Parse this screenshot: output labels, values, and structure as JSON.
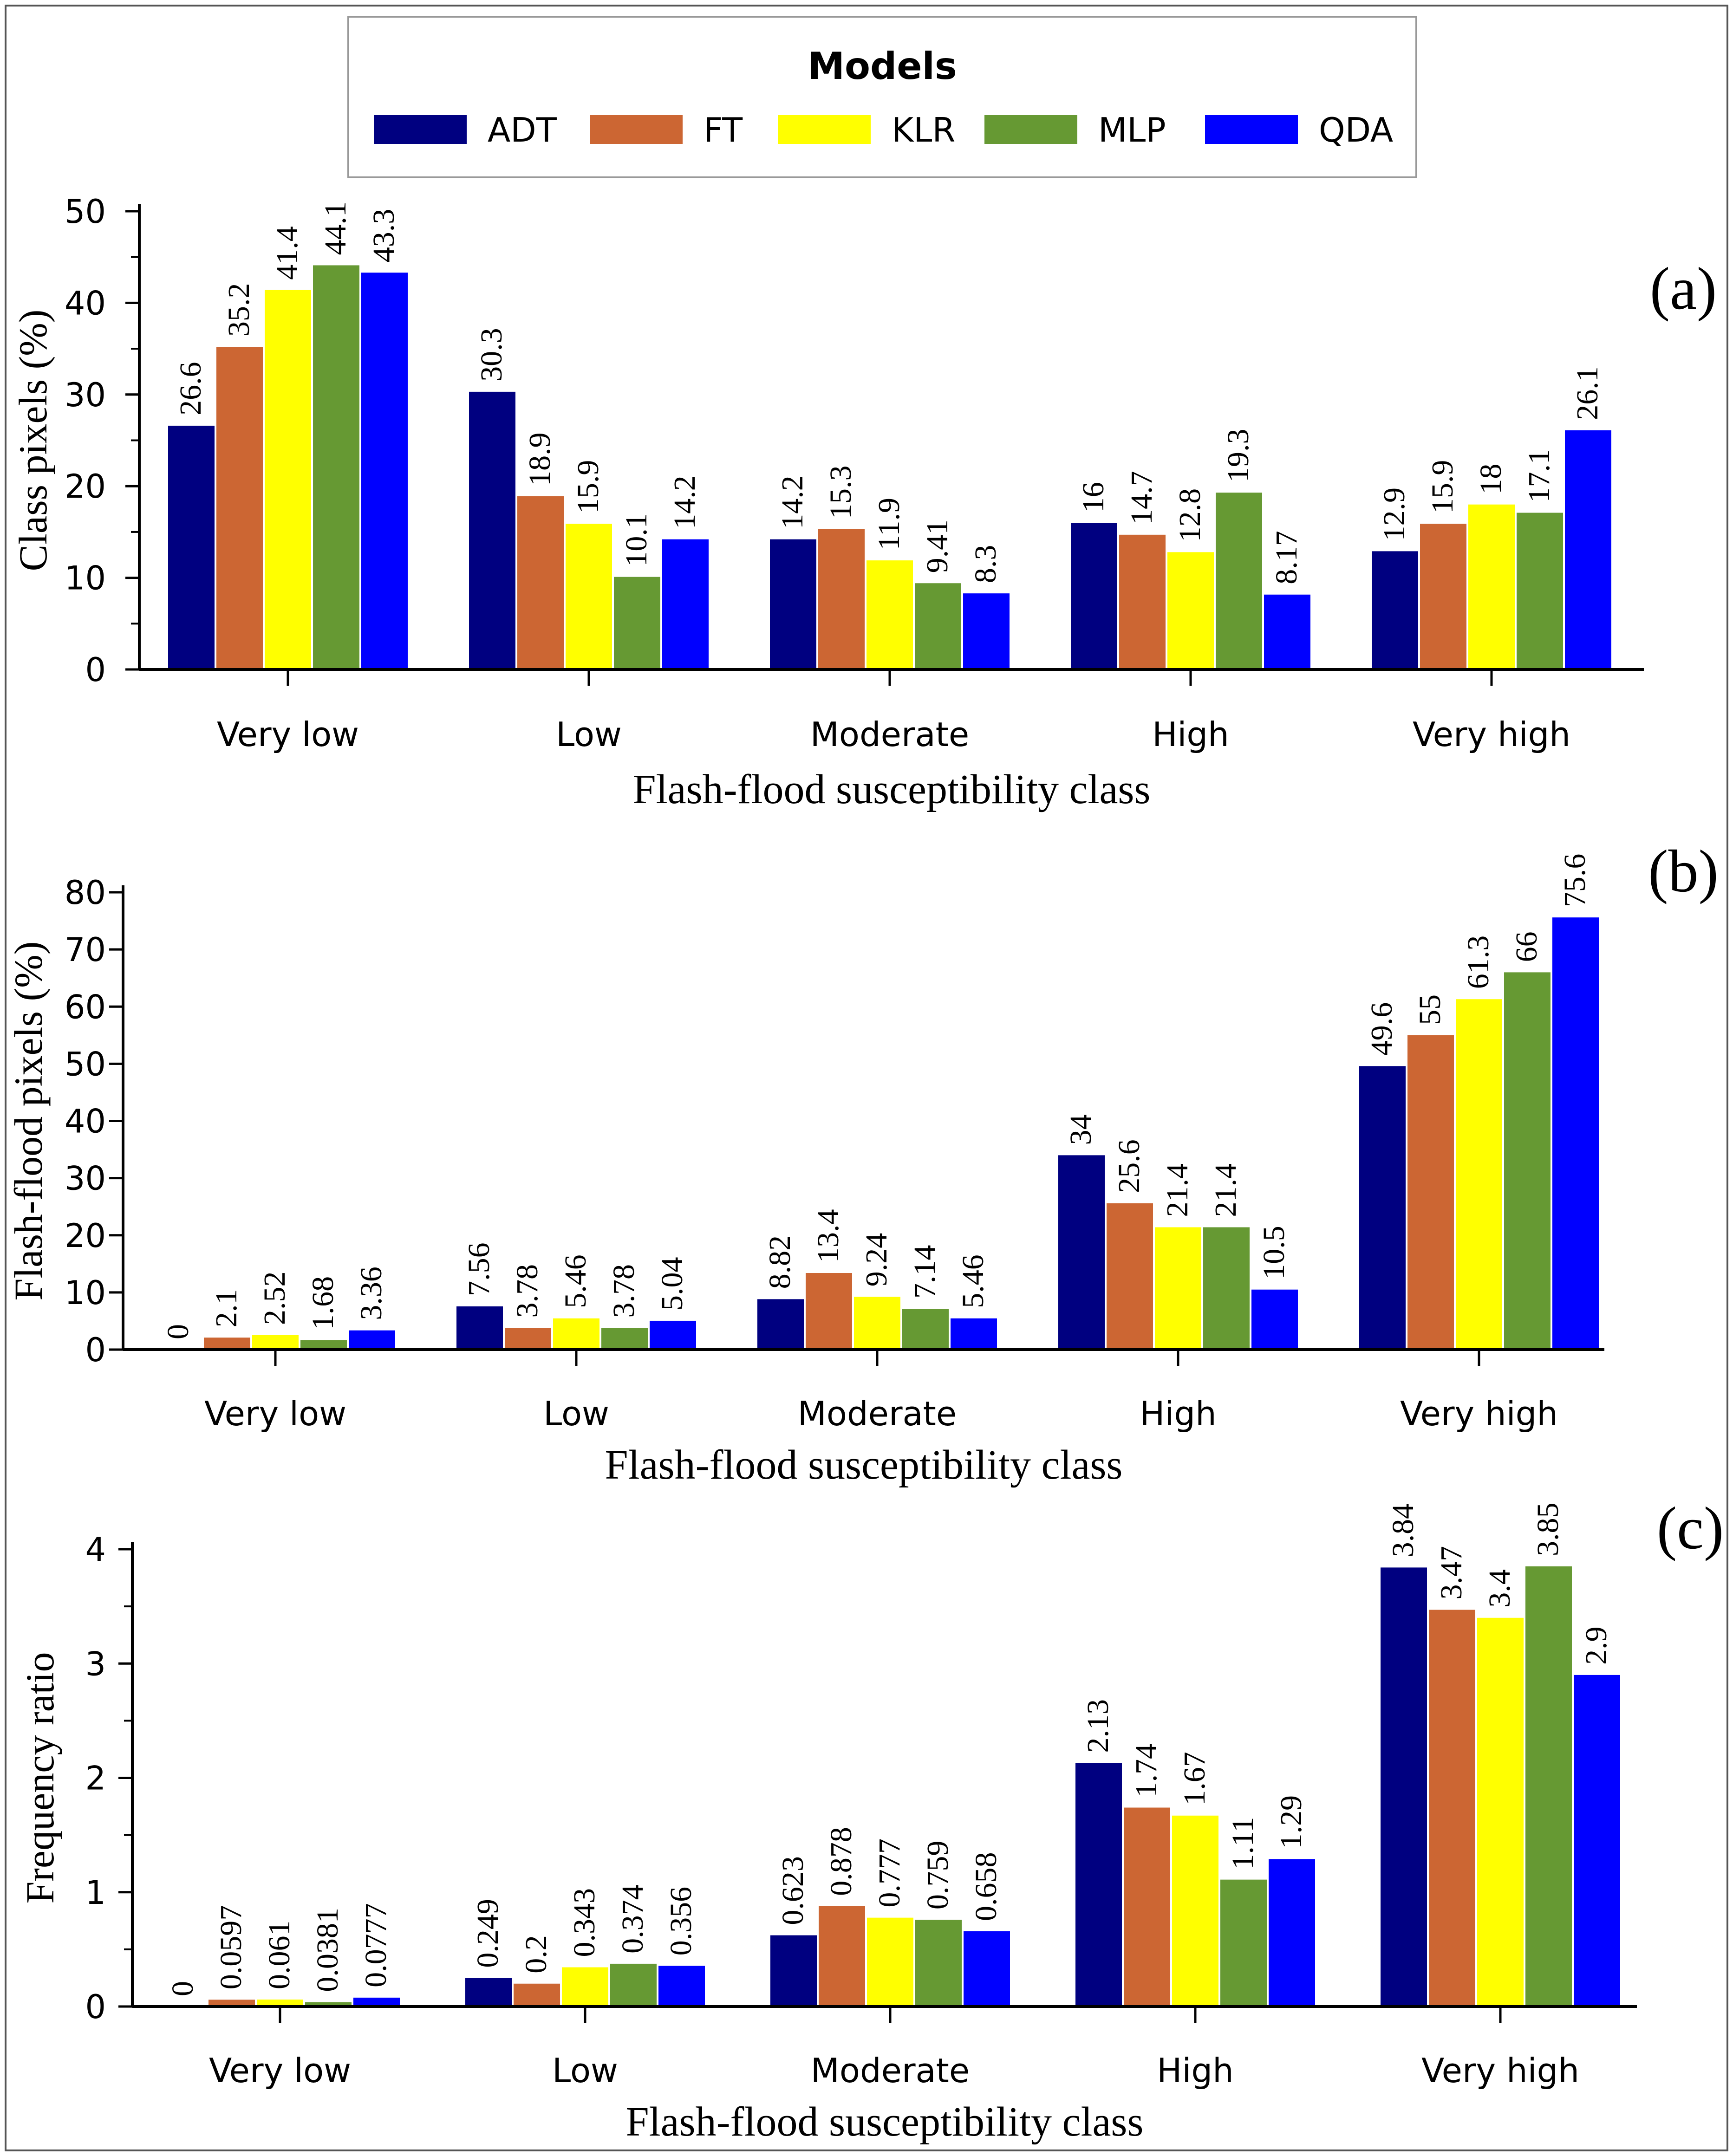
{
  "legend": {
    "title": "Models",
    "items": [
      {
        "name": "ADT",
        "color": "#000080"
      },
      {
        "name": "FT",
        "color": "#CC6633"
      },
      {
        "name": "KLR",
        "color": "#FFFF00"
      },
      {
        "name": "MLP",
        "color": "#669933"
      },
      {
        "name": "QDA",
        "color": "#0000FF"
      }
    ]
  },
  "chart_data": [
    {
      "type": "bar",
      "panel_label": "(a)",
      "ylabel": "Class pixels (%)",
      "xlabel": "Flash-flood susceptibility class",
      "ylim": [
        0,
        50
      ],
      "yticks": [
        0,
        10,
        20,
        30,
        40,
        50
      ],
      "ytick_labels": [
        "0",
        "10",
        "20",
        "30",
        "40",
        "50"
      ],
      "minor_ticks": true,
      "grid": false,
      "categories": [
        "Very low",
        "Low",
        "Moderate",
        "High",
        "Very high"
      ],
      "series": [
        {
          "name": "ADT",
          "values": [
            26.6,
            30.3,
            14.2,
            16,
            12.9
          ],
          "labels": [
            "26.6",
            "30.3",
            "14.2",
            "16",
            "12.9"
          ]
        },
        {
          "name": "FT",
          "values": [
            35.2,
            18.9,
            15.3,
            14.7,
            15.9
          ],
          "labels": [
            "35.2",
            "18.9",
            "15.3",
            "14.7",
            "15.9"
          ]
        },
        {
          "name": "KLR",
          "values": [
            41.4,
            15.9,
            11.9,
            12.8,
            18
          ],
          "labels": [
            "41.4",
            "15.9",
            "11.9",
            "12.8",
            "18"
          ]
        },
        {
          "name": "MLP",
          "values": [
            44.1,
            10.1,
            9.41,
            19.3,
            17.1
          ],
          "labels": [
            "44.1",
            "10.1",
            "9.41",
            "19.3",
            "17.1"
          ]
        },
        {
          "name": "QDA",
          "values": [
            43.3,
            14.2,
            8.3,
            8.17,
            26.1
          ],
          "labels": [
            "43.3",
            "14.2",
            "8.3",
            "8.17",
            "26.1"
          ]
        }
      ]
    },
    {
      "type": "bar",
      "panel_label": "(b)",
      "ylabel": "Flash-flood pixels (%)",
      "xlabel": "Flash-flood susceptibility class",
      "ylim": [
        0,
        80
      ],
      "yticks": [
        0,
        10,
        20,
        30,
        40,
        50,
        60,
        70,
        80
      ],
      "ytick_labels": [
        "0",
        "10",
        "20",
        "30",
        "40",
        "50",
        "60",
        "70",
        "80"
      ],
      "minor_ticks": false,
      "grid": false,
      "categories": [
        "Very low",
        "Low",
        "Moderate",
        "High",
        "Very high"
      ],
      "series": [
        {
          "name": "ADT",
          "values": [
            0,
            7.56,
            8.82,
            34,
            49.6
          ],
          "labels": [
            "0",
            "7.56",
            "8.82",
            "34",
            "49.6"
          ]
        },
        {
          "name": "FT",
          "values": [
            2.1,
            3.78,
            13.4,
            25.6,
            55
          ],
          "labels": [
            "2.1",
            "3.78",
            "13.4",
            "25.6",
            "55"
          ]
        },
        {
          "name": "KLR",
          "values": [
            2.52,
            5.46,
            9.24,
            21.4,
            61.3
          ],
          "labels": [
            "2.52",
            "5.46",
            "9.24",
            "21.4",
            "61.3"
          ]
        },
        {
          "name": "MLP",
          "values": [
            1.68,
            3.78,
            7.14,
            21.4,
            66
          ],
          "labels": [
            "1.68",
            "3.78",
            "7.14",
            "21.4",
            "66"
          ]
        },
        {
          "name": "QDA",
          "values": [
            3.36,
            5.04,
            5.46,
            10.5,
            75.6
          ],
          "labels": [
            "3.36",
            "5.04",
            "5.46",
            "10.5",
            "75.6"
          ]
        }
      ]
    },
    {
      "type": "bar",
      "panel_label": "(c)",
      "ylabel": "Frequency ratio",
      "xlabel": "Flash-flood susceptibility class",
      "ylim": [
        0,
        4
      ],
      "yticks": [
        0,
        1,
        2,
        3,
        4
      ],
      "ytick_labels": [
        "0",
        "1",
        "2",
        "3",
        "4"
      ],
      "minor_ticks": true,
      "grid": false,
      "categories": [
        "Very low",
        "Low",
        "Moderate",
        "High",
        "Very high"
      ],
      "series": [
        {
          "name": "ADT",
          "values": [
            0,
            0.249,
            0.623,
            2.13,
            3.84
          ],
          "labels": [
            "0",
            "0.249",
            "0.623",
            "2.13",
            "3.84"
          ]
        },
        {
          "name": "FT",
          "values": [
            0.0597,
            0.2,
            0.878,
            1.74,
            3.47
          ],
          "labels": [
            "0.0597",
            "0.2",
            "0.878",
            "1.74",
            "3.47"
          ]
        },
        {
          "name": "KLR",
          "values": [
            0.061,
            0.343,
            0.777,
            1.67,
            3.4
          ],
          "labels": [
            "0.061",
            "0.343",
            "0.777",
            "1.67",
            "3.4"
          ]
        },
        {
          "name": "MLP",
          "values": [
            0.0381,
            0.374,
            0.759,
            1.11,
            3.85
          ],
          "labels": [
            "0.0381",
            "0.374",
            "0.759",
            "1.11",
            "3.85"
          ]
        },
        {
          "name": "QDA",
          "values": [
            0.0777,
            0.356,
            0.658,
            1.29,
            2.9
          ],
          "labels": [
            "0.0777",
            "0.356",
            "0.658",
            "1.29",
            "2.9"
          ]
        }
      ]
    }
  ]
}
